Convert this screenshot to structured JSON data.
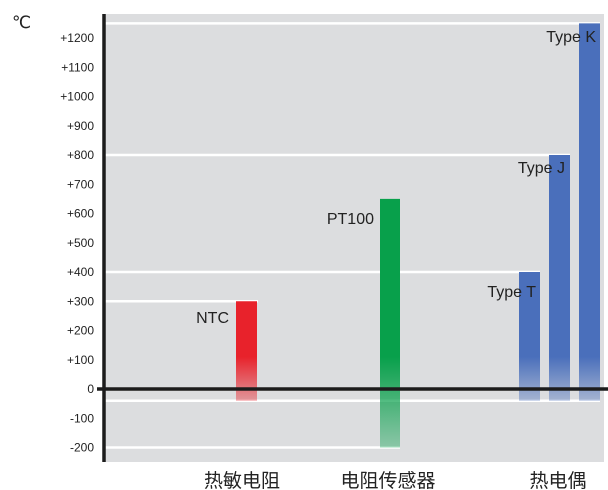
{
  "chart_data": {
    "type": "bar",
    "unit_label": "℃",
    "ylim": [
      -200,
      1250
    ],
    "y_ticks": [
      {
        "value": 1200,
        "label": "+1200"
      },
      {
        "value": 1100,
        "label": "+1100"
      },
      {
        "value": 1000,
        "label": "+1000"
      },
      {
        "value": 900,
        "label": "+900"
      },
      {
        "value": 800,
        "label": "+800"
      },
      {
        "value": 700,
        "label": "+700"
      },
      {
        "value": 600,
        "label": "+600"
      },
      {
        "value": 500,
        "label": "+500"
      },
      {
        "value": 400,
        "label": "+400"
      },
      {
        "value": 300,
        "label": "+300"
      },
      {
        "value": 200,
        "label": "+200"
      },
      {
        "value": 100,
        "label": "+100"
      },
      {
        "value": 0,
        "label": "0"
      },
      {
        "value": -100,
        "label": "-100"
      },
      {
        "value": -200,
        "label": "-200"
      }
    ],
    "categories": [
      "热敏电阻",
      "电阻传感器",
      "热电偶"
    ],
    "bars": [
      {
        "label": "NTC",
        "category": "热敏电阻",
        "low": -40,
        "high": 300
      },
      {
        "label": "PT100",
        "category": "电阻传感器",
        "low": -200,
        "high": 650
      },
      {
        "label": "Type T",
        "category": "热电偶",
        "low": -40,
        "high": 400
      },
      {
        "label": "Type J",
        "category": "热电偶",
        "low": -40,
        "high": 800
      },
      {
        "label": "Type K",
        "category": "热电偶",
        "low": -40,
        "high": 1250
      }
    ],
    "colors": {
      "background": "#dcdddf",
      "NTC": "#e8222b",
      "PT100": "#08a04b",
      "thermocouple": "#4a6fbb",
      "axis": "#1c1c1c",
      "guideline": "#ffffff"
    },
    "grid": false
  }
}
